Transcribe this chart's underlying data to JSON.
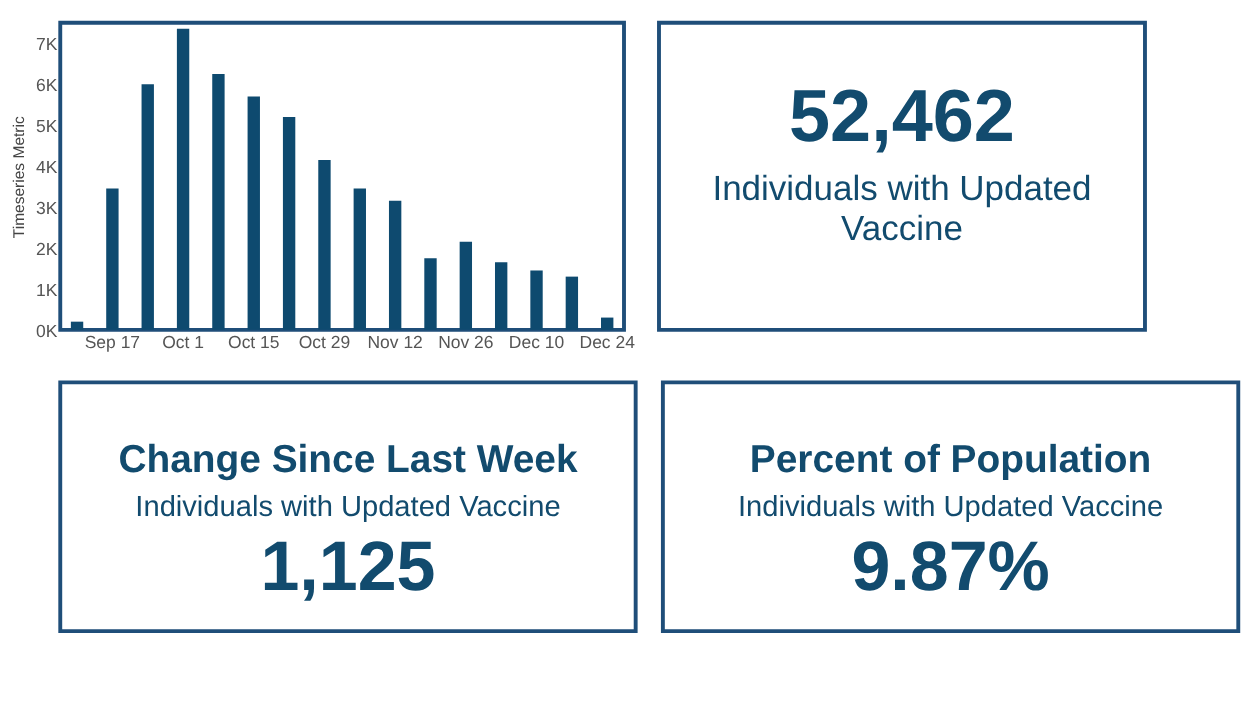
{
  "chart_data": [
    {
      "type": "bar",
      "ylabel": "Timeseries Metric",
      "color": "#0e4a6f",
      "grid": false,
      "categories": [
        null,
        "Sep 17",
        null,
        "Oct 1",
        null,
        "Oct 15",
        null,
        "Oct 29",
        null,
        "Nov 12",
        null,
        "Nov 26",
        null,
        "Dec 10",
        null,
        "Dec 24"
      ],
      "values": [
        200,
        3450,
        6000,
        7350,
        6250,
        5700,
        5200,
        4150,
        3450,
        3150,
        1750,
        2150,
        1650,
        1450,
        1300,
        300
      ],
      "ylim": [
        0,
        7500
      ],
      "yticks": [
        {
          "value": 0,
          "label": "0K"
        },
        {
          "value": 1000,
          "label": "1K"
        },
        {
          "value": 2000,
          "label": "2K"
        },
        {
          "value": 3000,
          "label": "3K"
        },
        {
          "value": 4000,
          "label": "4K"
        },
        {
          "value": 5000,
          "label": "5K"
        },
        {
          "value": 6000,
          "label": "6K"
        },
        {
          "value": 7000,
          "label": "7K"
        }
      ]
    },
    {
      "type": "other",
      "subtitle": "Individuals with Updated Vaccine",
      "annotations": [
        "52,462"
      ]
    },
    {
      "type": "other",
      "title": "Change Since Last Week",
      "subtitle": "Individuals with Updated Vaccine",
      "annotations": [
        "1,125"
      ]
    },
    {
      "type": "other",
      "title": "Percent of Population",
      "subtitle": "Individuals with Updated Vaccine",
      "annotations": [
        "9.87%"
      ]
    }
  ]
}
